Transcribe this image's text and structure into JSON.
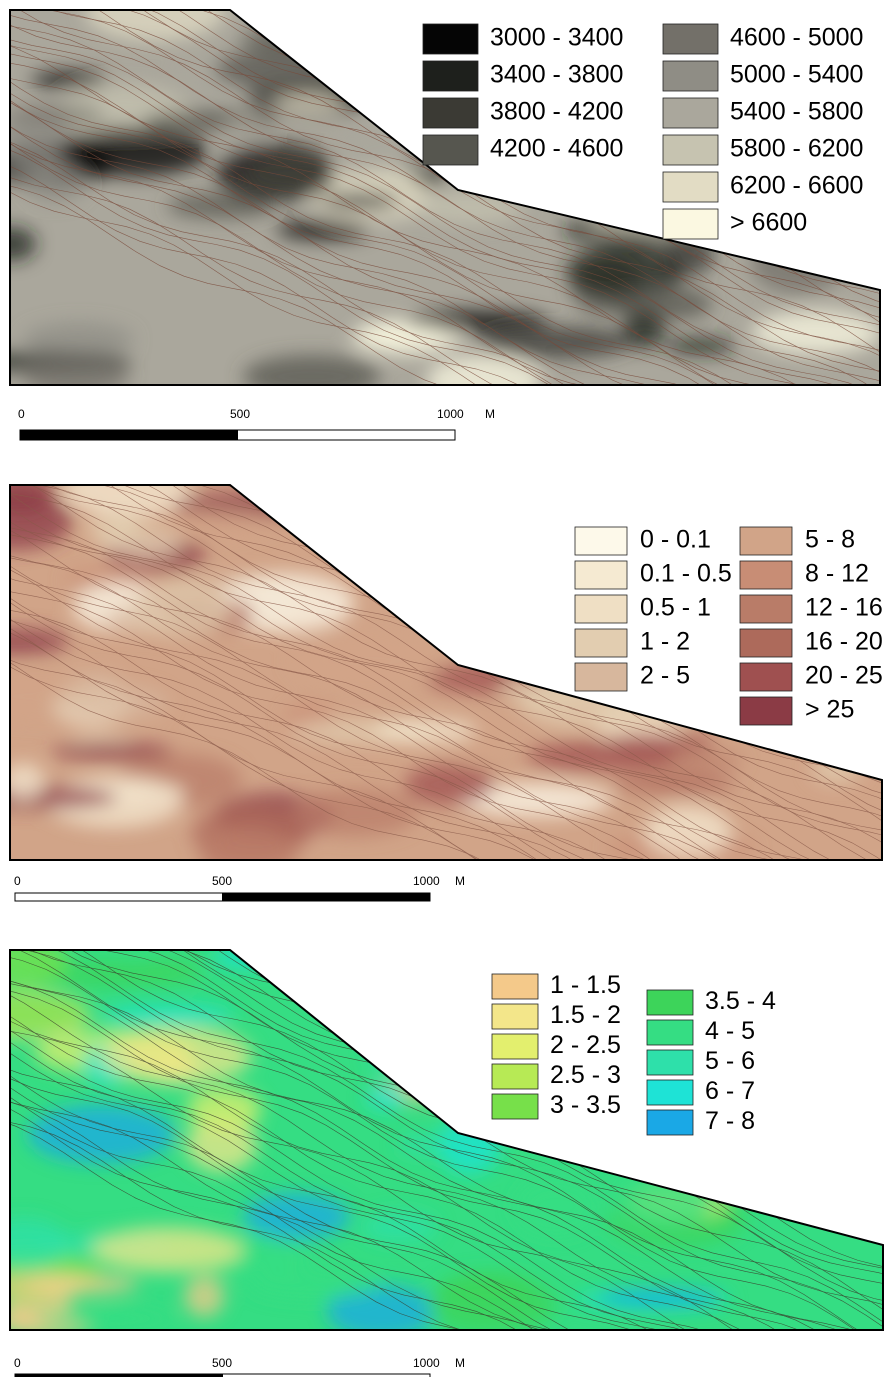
{
  "maps": [
    {
      "legend": [
        [
          {
            "label": "3000 - 3400",
            "color": "#050505"
          },
          {
            "label": "3400 - 3800",
            "color": "#1e201c"
          },
          {
            "label": "3800 - 4200",
            "color": "#3b3a34"
          },
          {
            "label": "4200 - 4600",
            "color": "#56564f"
          }
        ],
        [
          {
            "label": "4600 - 5000",
            "color": "#737069"
          },
          {
            "label": "5000 - 5400",
            "color": "#8f8d85"
          },
          {
            "label": "5400 - 5800",
            "color": "#aaa79c"
          },
          {
            "label": "5800 - 6200",
            "color": "#c6c3b0"
          },
          {
            "label": "6200 - 6600",
            "color": "#e2dcc4"
          },
          {
            "label": "> 6600",
            "color": "#fbf8e1"
          }
        ]
      ],
      "scale": {
        "ticks": [
          "0",
          "500",
          "1000"
        ],
        "unit": "M"
      }
    },
    {
      "legend": [
        [
          {
            "label": "0 - 0.1",
            "color": "#fdf9ea"
          },
          {
            "label": "0.1 - 0.5",
            "color": "#f5ead2"
          },
          {
            "label": "0.5 - 1",
            "color": "#efdfc4"
          },
          {
            "label": "1 - 2",
            "color": "#e2cdb0"
          },
          {
            "label": "2 - 5",
            "color": "#d7b79d"
          }
        ],
        [
          {
            "label": "5 - 8",
            "color": "#d1a488"
          },
          {
            "label": "8 - 12",
            "color": "#c88d75"
          },
          {
            "label": "12 - 16",
            "color": "#b97c68"
          },
          {
            "label": "16 - 20",
            "color": "#ad6a5b"
          },
          {
            "label": "20 - 25",
            "color": "#9f5050"
          },
          {
            "label": "> 25",
            "color": "#8b3b45"
          }
        ]
      ],
      "scale": {
        "ticks": [
          "0",
          "500",
          "1000"
        ],
        "unit": "M"
      }
    },
    {
      "legend": [
        [
          {
            "label": "1 - 1.5",
            "color": "#f4c98a"
          },
          {
            "label": "1.5 - 2",
            "color": "#f3e68a"
          },
          {
            "label": "2 - 2.5",
            "color": "#e3ef6e"
          },
          {
            "label": "2.5 - 3",
            "color": "#b7ea55"
          },
          {
            "label": "3 - 3.5",
            "color": "#77e04a"
          }
        ],
        [
          {
            "label": "3.5 - 4",
            "color": "#3dd45a"
          },
          {
            "label": "4 - 5",
            "color": "#35dd83"
          },
          {
            "label": "5 - 6",
            "color": "#2ee0aa"
          },
          {
            "label": "6 - 7",
            "color": "#1ee3d6"
          },
          {
            "label": "7 - 8",
            "color": "#1aa8e6"
          }
        ]
      ],
      "scale": {
        "ticks": [
          "0",
          "500",
          "1000"
        ],
        "unit": "M"
      }
    }
  ]
}
